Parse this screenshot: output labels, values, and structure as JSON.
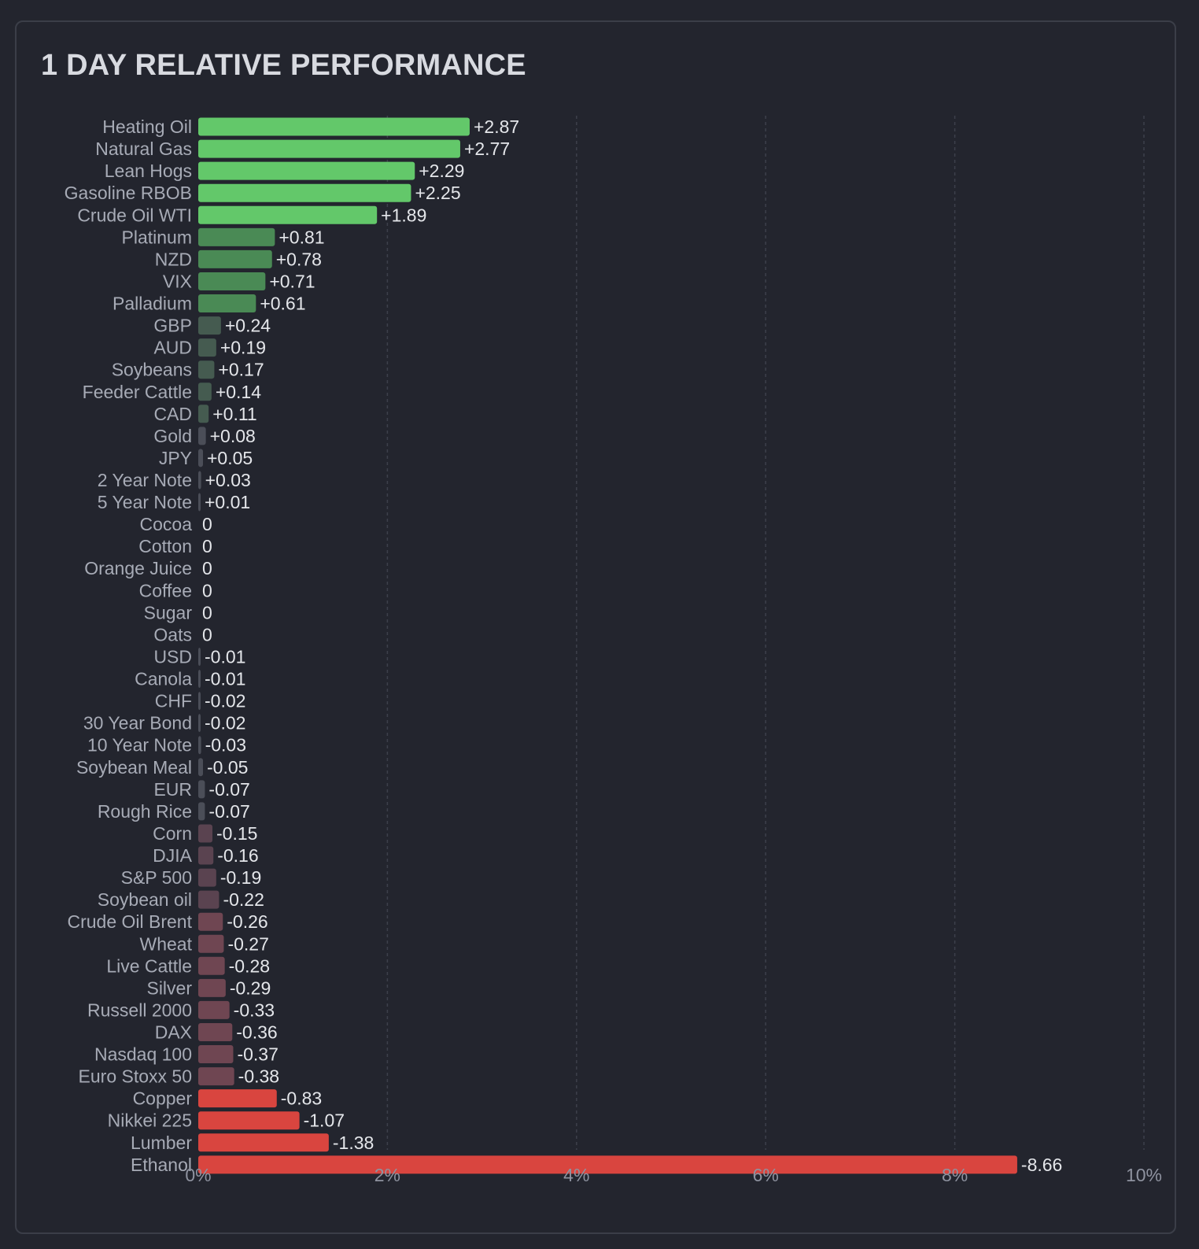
{
  "title": "1 DAY RELATIVE PERFORMANCE",
  "colors": {
    "background": "#23252e",
    "panel_border": "#3b3e48",
    "gridline": "#3d404b",
    "positive_strong": "#63c86a",
    "positive_mid": "#4a8a55",
    "positive_weak": "#455b50",
    "neutral": "#4b4e58",
    "negative_weak": "#5a4350",
    "negative_mid": "#6f4652",
    "negative_strong": "#d9453f"
  },
  "chart_data": {
    "type": "bar",
    "orientation": "horizontal",
    "title": "1 DAY RELATIVE PERFORMANCE",
    "xlabel": "",
    "ylabel": "",
    "xlim": [
      0,
      10
    ],
    "x_ticks": [
      0,
      2,
      4,
      6,
      8,
      10
    ],
    "x_tick_labels": [
      "0%",
      "2%",
      "4%",
      "6%",
      "8%",
      "10%"
    ],
    "bar_length": "absolute value",
    "grid": "vertical dashed",
    "legend": "none",
    "categories": [
      "Heating Oil",
      "Natural Gas",
      "Lean Hogs",
      "Gasoline RBOB",
      "Crude Oil WTI",
      "Platinum",
      "NZD",
      "VIX",
      "Palladium",
      "GBP",
      "AUD",
      "Soybeans",
      "Feeder Cattle",
      "CAD",
      "Gold",
      "JPY",
      "2 Year Note",
      "5 Year Note",
      "Cocoa",
      "Cotton",
      "Orange Juice",
      "Coffee",
      "Sugar",
      "Oats",
      "USD",
      "Canola",
      "CHF",
      "30 Year Bond",
      "10 Year Note",
      "Soybean Meal",
      "EUR",
      "Rough Rice",
      "Corn",
      "DJIA",
      "S&P 500",
      "Soybean oil",
      "Crude Oil Brent",
      "Wheat",
      "Live Cattle",
      "Silver",
      "Russell 2000",
      "DAX",
      "Nasdaq 100",
      "Euro Stoxx 50",
      "Copper",
      "Nikkei 225",
      "Lumber",
      "Ethanol"
    ],
    "values": [
      2.87,
      2.77,
      2.29,
      2.25,
      1.89,
      0.81,
      0.78,
      0.71,
      0.61,
      0.24,
      0.19,
      0.17,
      0.14,
      0.11,
      0.08,
      0.05,
      0.03,
      0.01,
      0,
      0,
      0,
      0,
      0,
      0,
      -0.01,
      -0.01,
      -0.02,
      -0.02,
      -0.03,
      -0.05,
      -0.07,
      -0.07,
      -0.15,
      -0.16,
      -0.19,
      -0.22,
      -0.26,
      -0.27,
      -0.28,
      -0.29,
      -0.33,
      -0.36,
      -0.37,
      -0.38,
      -0.83,
      -1.07,
      -1.38,
      -8.66
    ],
    "value_labels": [
      "+2.87",
      "+2.77",
      "+2.29",
      "+2.25",
      "+1.89",
      "+0.81",
      "+0.78",
      "+0.71",
      "+0.61",
      "+0.24",
      "+0.19",
      "+0.17",
      "+0.14",
      "+0.11",
      "+0.08",
      "+0.05",
      "+0.03",
      "+0.01",
      "0",
      "0",
      "0",
      "0",
      "0",
      "0",
      "-0.01",
      "-0.01",
      "-0.02",
      "-0.02",
      "-0.03",
      "-0.05",
      "-0.07",
      "-0.07",
      "-0.15",
      "-0.16",
      "-0.19",
      "-0.22",
      "-0.26",
      "-0.27",
      "-0.28",
      "-0.29",
      "-0.33",
      "-0.36",
      "-0.37",
      "-0.38",
      "-0.83",
      "-1.07",
      "-1.38",
      "-8.66"
    ]
  }
}
